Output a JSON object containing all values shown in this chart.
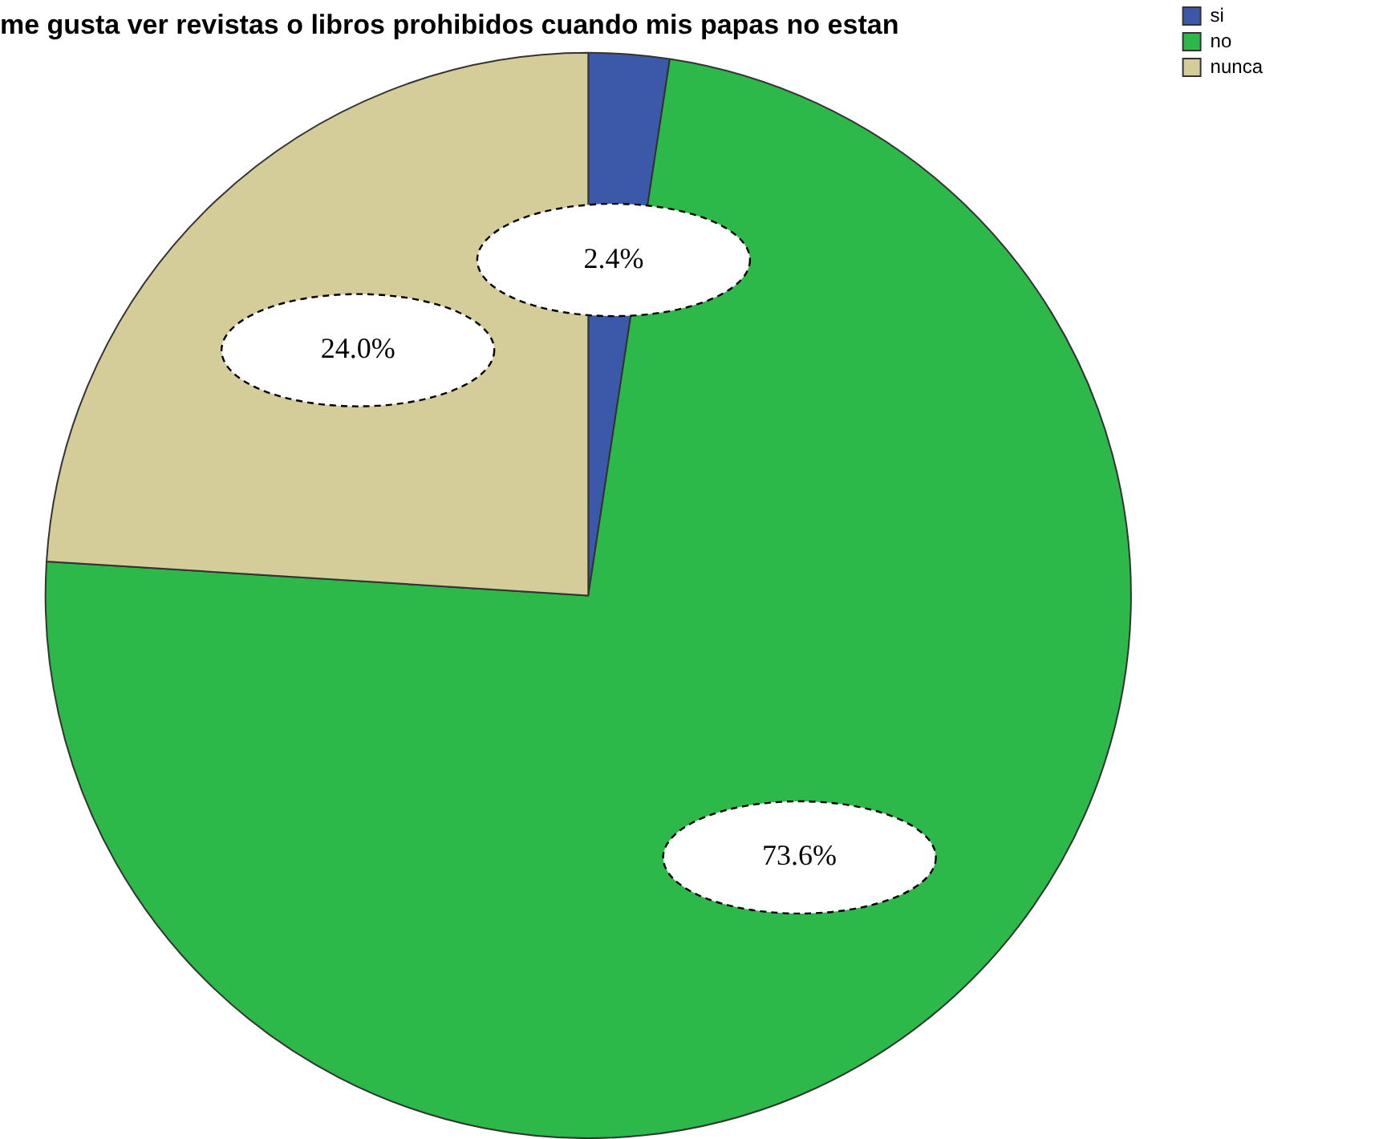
{
  "chart_data": {
    "type": "pie",
    "title": "me gusta ver revistas o libros prohibidos cuando mis papas no estan",
    "categories": [
      "si",
      "no",
      "nunca"
    ],
    "values": [
      2.4,
      73.6,
      24.0
    ],
    "colors": [
      "#3c58a8",
      "#2db84a",
      "#d4cc99"
    ],
    "value_labels": [
      "2.4%",
      "73.6%",
      "24.0%"
    ],
    "legend": "top right"
  }
}
